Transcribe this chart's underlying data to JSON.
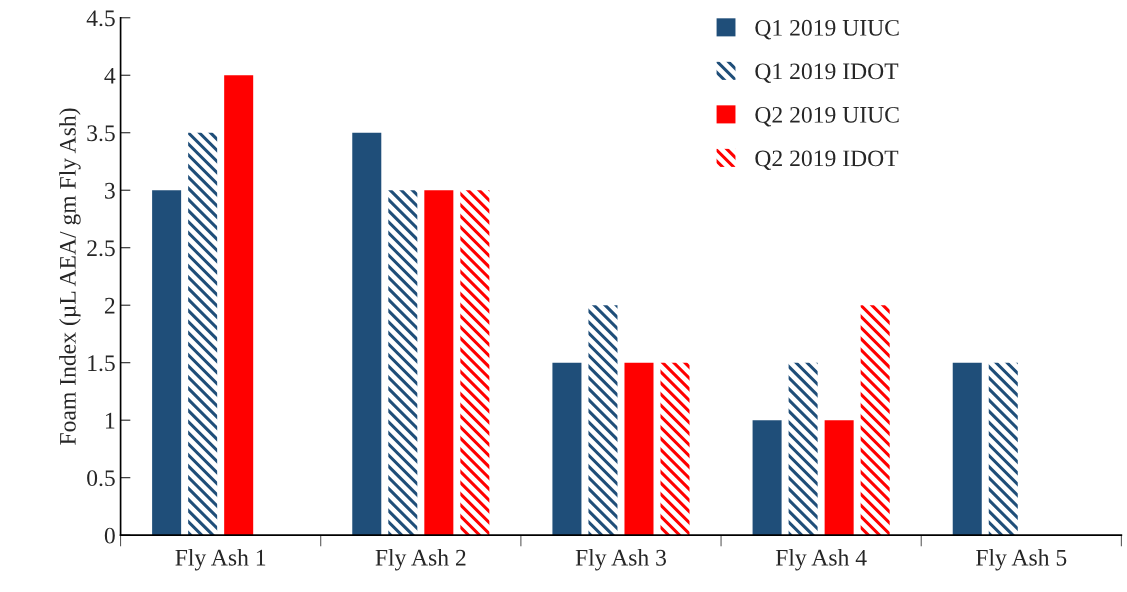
{
  "chart_data": {
    "type": "bar",
    "ylabel": "Foam Index (µL AEA/ gm Fly Ash)",
    "categories": [
      "Fly Ash 1",
      "Fly Ash 2",
      "Fly Ash 3",
      "Fly Ash 4",
      "Fly Ash 5"
    ],
    "series": [
      {
        "name": "Q1 2019 UIUC",
        "color": "#1f4e79",
        "values": [
          3,
          3.5,
          1.5,
          1,
          1.5
        ]
      },
      {
        "name": "Q1 2019 IDOT",
        "color": "#1f4e79",
        "values": [
          3.5,
          3,
          2,
          1.5,
          1.5
        ]
      },
      {
        "name": "Q2 2019 UIUC",
        "color": "#ff0000",
        "values": [
          4,
          3,
          1.5,
          1,
          null
        ]
      },
      {
        "name": "Q2 2019 IDOT",
        "color": "#ff0000",
        "values": [
          null,
          3,
          1.5,
          2,
          null
        ]
      }
    ],
    "ylim": [
      0,
      4.5
    ],
    "yticks": [
      0,
      0.5,
      1,
      1.5,
      2,
      2.5,
      3,
      3.5,
      4,
      4.5
    ],
    "grid": false,
    "legend": "top right"
  }
}
